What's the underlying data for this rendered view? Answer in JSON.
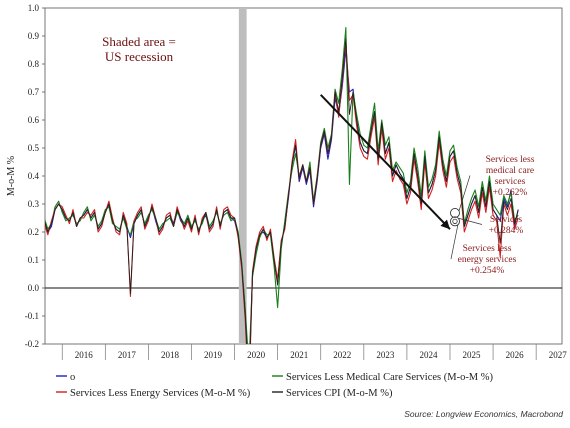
{
  "chart_data": {
    "type": "line",
    "ylabel": "M-o-M %",
    "ylim": [
      -0.2,
      1.0
    ],
    "yticks": [
      "1.0",
      "0.9",
      "0.8",
      "0.7",
      "0.6",
      "0.5",
      "0.4",
      "0.3",
      "0.2",
      "0.1",
      "0.0",
      "-0.1",
      "-0.2"
    ],
    "xlim": [
      2015.6,
      2027.6
    ],
    "xticks": [
      "2016",
      "2017",
      "2018",
      "2019",
      "2020",
      "2021",
      "2022",
      "2023",
      "2024",
      "2025",
      "2026",
      "2027"
    ],
    "recession": {
      "start": 2020.1,
      "end": 2020.28
    },
    "recession_label": [
      "Shaded area =",
      "US recession"
    ],
    "trend_arrow": {
      "from": [
        2022.0,
        0.69
      ],
      "to": [
        2025.0,
        0.21
      ]
    },
    "annotations": [
      {
        "lines": [
          "Services less",
          "medical care",
          "services",
          "+0.262%"
        ]
      },
      {
        "lines": [
          "Services",
          "+0.284%"
        ]
      },
      {
        "lines": [
          "Services less",
          "energy services",
          "+0.254%"
        ]
      }
    ],
    "legend": [
      {
        "label": "o",
        "color": "#1f1fbf"
      },
      {
        "label": "Services Less Medical Care Services (M-o-M %)",
        "color": "#1a7f1a"
      },
      {
        "label": "Services Less Energy Services (M-o-M %)",
        "color": "#d42020"
      },
      {
        "label": "Services CPI (M-o-M %)",
        "color": "#222222"
      }
    ],
    "source": "Source: Longview Economics, Macrobond",
    "series": [
      {
        "name": "o",
        "color": "#1f1fbf",
        "x0": 2015.0,
        "step": 0.08333,
        "values": [
          0.2,
          0.22,
          0.25,
          0.21,
          0.24,
          0.27,
          0.26,
          0.24,
          0.2,
          0.22,
          0.28,
          0.3,
          0.28,
          0.25,
          0.24,
          0.27,
          0.22,
          0.25,
          0.26,
          0.28,
          0.25,
          0.27,
          0.21,
          0.23,
          0.27,
          0.3,
          0.24,
          0.21,
          0.2,
          0.26,
          0.22,
          0.18,
          0.23,
          0.26,
          0.28,
          0.22,
          0.25,
          0.29,
          0.24,
          0.2,
          0.22,
          0.25,
          0.26,
          0.23,
          0.28,
          0.24,
          0.22,
          0.25,
          0.21,
          0.25,
          0.2,
          0.24,
          0.26,
          0.21,
          0.23,
          0.28,
          0.22,
          0.27,
          0.28,
          0.25,
          0.24,
          0.19,
          0.08,
          -0.09,
          -0.35,
          0.05,
          0.14,
          0.19,
          0.2,
          0.18,
          0.2,
          0.1,
          0.02,
          0.16,
          0.22,
          0.32,
          0.44,
          0.51,
          0.38,
          0.43,
          0.37,
          0.42,
          0.29,
          0.38,
          0.5,
          0.55,
          0.46,
          0.53,
          0.68,
          0.62,
          0.72,
          0.85,
          0.7,
          0.71,
          0.6,
          0.52,
          0.49,
          0.48,
          0.56,
          0.63,
          0.46,
          0.59,
          0.48,
          0.52,
          0.4,
          0.44,
          0.41,
          0.39,
          0.32,
          0.36,
          0.48,
          0.4,
          0.3,
          0.47,
          0.34,
          0.37,
          0.42,
          0.54,
          0.44,
          0.38,
          0.47,
          0.49,
          0.41,
          0.36,
          0.22,
          0.26,
          0.3,
          0.33,
          0.27,
          0.36,
          0.29,
          0.38,
          0.28,
          0.26,
          0.24,
          0.32,
          0.29,
          0.35,
          0.22,
          0.28
        ]
      },
      {
        "name": "Services Less Medical Care Services (M-o-M %)",
        "color": "#1a7f1a",
        "x0": 2015.0,
        "step": 0.08333,
        "values": [
          0.18,
          0.2,
          0.24,
          0.2,
          0.23,
          0.26,
          0.27,
          0.25,
          0.21,
          0.23,
          0.29,
          0.31,
          0.27,
          0.24,
          0.25,
          0.26,
          0.23,
          0.24,
          0.27,
          0.29,
          0.24,
          0.26,
          0.22,
          0.24,
          0.28,
          0.29,
          0.23,
          0.22,
          0.21,
          0.25,
          0.21,
          0.19,
          0.24,
          0.25,
          0.27,
          0.23,
          0.26,
          0.28,
          0.25,
          0.21,
          0.23,
          0.24,
          0.25,
          0.22,
          0.27,
          0.25,
          0.23,
          0.26,
          0.22,
          0.24,
          0.21,
          0.23,
          0.27,
          0.22,
          0.24,
          0.27,
          0.23,
          0.26,
          0.27,
          0.24,
          0.25,
          0.2,
          0.09,
          -0.08,
          -0.28,
          0.04,
          0.12,
          0.18,
          0.21,
          0.19,
          0.19,
          0.08,
          -0.07,
          0.14,
          0.24,
          0.34,
          0.42,
          0.48,
          0.4,
          0.44,
          0.38,
          0.45,
          0.31,
          0.4,
          0.52,
          0.57,
          0.5,
          0.55,
          0.71,
          0.66,
          0.78,
          0.93,
          0.37,
          0.7,
          0.62,
          0.55,
          0.51,
          0.5,
          0.58,
          0.66,
          0.49,
          0.6,
          0.51,
          0.54,
          0.42,
          0.45,
          0.43,
          0.41,
          0.34,
          0.38,
          0.5,
          0.43,
          0.33,
          0.49,
          0.36,
          0.39,
          0.44,
          0.56,
          0.46,
          0.4,
          0.49,
          0.51,
          0.43,
          0.38,
          0.23,
          0.28,
          0.32,
          0.35,
          0.29,
          0.38,
          0.31,
          0.4,
          0.3,
          0.28,
          0.26,
          0.33,
          0.3,
          0.34,
          0.24,
          0.26
        ]
      },
      {
        "name": "Services Less Energy Services (M-o-M %)",
        "color": "#d42020",
        "x0": 2015.0,
        "step": 0.08333,
        "values": [
          0.19,
          0.21,
          0.26,
          0.22,
          0.24,
          0.28,
          0.28,
          0.23,
          0.19,
          0.24,
          0.28,
          0.3,
          0.29,
          0.26,
          0.23,
          0.28,
          0.22,
          0.25,
          0.25,
          0.27,
          0.26,
          0.28,
          0.2,
          0.22,
          0.27,
          0.31,
          0.25,
          0.2,
          0.19,
          0.27,
          0.23,
          -0.03,
          0.24,
          0.27,
          0.29,
          0.21,
          0.24,
          0.3,
          0.25,
          0.19,
          0.21,
          0.26,
          0.27,
          0.22,
          0.29,
          0.25,
          0.21,
          0.24,
          0.2,
          0.26,
          0.19,
          0.25,
          0.27,
          0.2,
          0.22,
          0.29,
          0.21,
          0.28,
          0.29,
          0.26,
          0.25,
          0.18,
          0.07,
          -0.12,
          -0.4,
          0.06,
          0.15,
          0.2,
          0.22,
          0.17,
          0.21,
          0.11,
          0.03,
          0.17,
          0.21,
          0.33,
          0.45,
          0.53,
          0.39,
          0.44,
          0.38,
          0.43,
          0.3,
          0.39,
          0.51,
          0.56,
          0.48,
          0.54,
          0.7,
          0.61,
          0.74,
          0.88,
          0.67,
          0.69,
          0.58,
          0.5,
          0.47,
          0.46,
          0.54,
          0.61,
          0.44,
          0.57,
          0.46,
          0.5,
          0.38,
          0.42,
          0.39,
          0.37,
          0.3,
          0.34,
          0.46,
          0.38,
          0.28,
          0.45,
          0.32,
          0.35,
          0.4,
          0.52,
          0.42,
          0.36,
          0.45,
          0.47,
          0.39,
          0.34,
          0.2,
          0.24,
          0.28,
          0.31,
          0.25,
          0.34,
          0.27,
          0.36,
          0.26,
          0.24,
          0.11,
          0.3,
          0.26,
          0.3,
          0.21,
          0.25
        ]
      },
      {
        "name": "Services CPI (M-o-M %)",
        "color": "#222222",
        "x0": 2015.0,
        "step": 0.08333,
        "values": [
          0.19,
          0.21,
          0.25,
          0.21,
          0.24,
          0.27,
          0.27,
          0.24,
          0.2,
          0.23,
          0.28,
          0.3,
          0.28,
          0.25,
          0.24,
          0.27,
          0.22,
          0.25,
          0.26,
          0.28,
          0.25,
          0.27,
          0.21,
          0.23,
          0.27,
          0.3,
          0.24,
          0.21,
          0.2,
          0.26,
          0.22,
          -0.02,
          0.23,
          0.26,
          0.28,
          0.22,
          0.25,
          0.29,
          0.25,
          0.2,
          0.22,
          0.25,
          0.26,
          0.22,
          0.28,
          0.25,
          0.22,
          0.25,
          0.21,
          0.25,
          0.2,
          0.24,
          0.27,
          0.21,
          0.23,
          0.28,
          0.22,
          0.27,
          0.28,
          0.25,
          0.25,
          0.19,
          0.08,
          -0.1,
          -0.36,
          0.05,
          0.14,
          0.19,
          0.21,
          0.18,
          0.2,
          0.1,
          0.01,
          0.16,
          0.22,
          0.33,
          0.44,
          0.51,
          0.39,
          0.44,
          0.38,
          0.43,
          0.3,
          0.39,
          0.51,
          0.56,
          0.48,
          0.54,
          0.7,
          0.63,
          0.75,
          0.89,
          0.62,
          0.7,
          0.6,
          0.52,
          0.49,
          0.48,
          0.56,
          0.63,
          0.46,
          0.59,
          0.48,
          0.52,
          0.4,
          0.44,
          0.41,
          0.39,
          0.32,
          0.36,
          0.48,
          0.4,
          0.3,
          0.47,
          0.34,
          0.37,
          0.42,
          0.54,
          0.44,
          0.38,
          0.47,
          0.49,
          0.41,
          0.36,
          0.22,
          0.26,
          0.3,
          0.33,
          0.27,
          0.36,
          0.29,
          0.38,
          0.28,
          0.26,
          0.16,
          0.31,
          0.28,
          0.32,
          0.23,
          0.28
        ]
      }
    ]
  }
}
